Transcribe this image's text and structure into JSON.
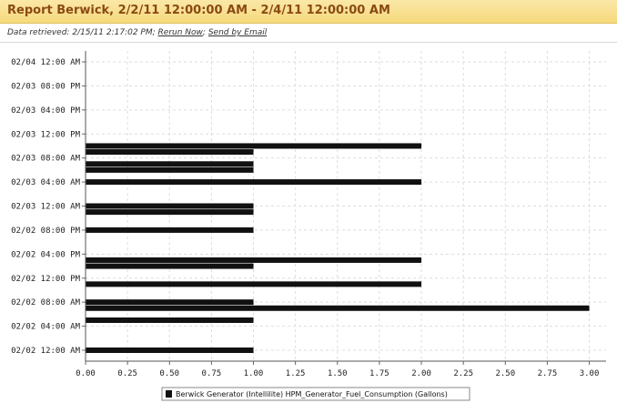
{
  "header": {
    "title": "Report Berwick, 2/2/11 12:00:00 AM - 2/4/11 12:00:00 AM"
  },
  "info": {
    "retrieved_label": "Data retrieved: 2/15/11 2:17:02 PM;",
    "rerun_label": "Rerun Now",
    "separator": ";",
    "email_label": "Send by Email"
  },
  "colors": {
    "bar": "#111111",
    "title": "#8a4a12",
    "grid": "#dddddd"
  },
  "chart_data": {
    "type": "bar",
    "orientation": "horizontal",
    "title": "",
    "xlabel": "",
    "ylabel": "",
    "xlim": [
      0,
      3.1
    ],
    "x_ticks": [
      0,
      0.25,
      0.5,
      0.75,
      1.0,
      1.25,
      1.5,
      1.75,
      2.0,
      2.25,
      2.5,
      2.75,
      3.0
    ],
    "x_tick_labels": [
      "0.00",
      "0.25",
      "0.50",
      "0.75",
      "1.00",
      "1.25",
      "1.50",
      "1.75",
      "2.00",
      "2.25",
      "2.50",
      "2.75",
      "3.00"
    ],
    "y_ticks": [
      "02/02 12:00 AM",
      "02/02 04:00 AM",
      "02/02 08:00 AM",
      "02/02 12:00 PM",
      "02/02 04:00 PM",
      "02/02 08:00 PM",
      "02/03 12:00 AM",
      "02/03 04:00 AM",
      "02/03 08:00 AM",
      "02/03 12:00 PM",
      "02/03 04:00 PM",
      "02/03 08:00 PM",
      "02/04 12:00 AM"
    ],
    "grid": true,
    "legend_position": "bottom",
    "series": [
      {
        "name": "Berwick Generator (Intellilite) HPM_Generator_Fuel_Consumption (Gallons)",
        "points": [
          {
            "time": "02/02 12:00 AM",
            "value": 1.0
          },
          {
            "time": "02/02 05:00 AM",
            "value": 1.0
          },
          {
            "time": "02/02 07:00 AM",
            "value": 3.0
          },
          {
            "time": "02/02 08:00 AM",
            "value": 1.0
          },
          {
            "time": "02/02 11:00 AM",
            "value": 2.0
          },
          {
            "time": "02/02 02:00 PM",
            "value": 1.0
          },
          {
            "time": "02/02 03:00 PM",
            "value": 2.0
          },
          {
            "time": "02/02 08:00 PM",
            "value": 1.0
          },
          {
            "time": "02/02 11:00 PM",
            "value": 1.0
          },
          {
            "time": "02/03 12:00 AM",
            "value": 1.0
          },
          {
            "time": "02/03 04:00 AM",
            "value": 2.0
          },
          {
            "time": "02/03 06:00 AM",
            "value": 1.0
          },
          {
            "time": "02/03 07:00 AM",
            "value": 1.0
          },
          {
            "time": "02/03 09:00 AM",
            "value": 1.0
          },
          {
            "time": "02/03 10:00 AM",
            "value": 2.0
          }
        ]
      }
    ]
  }
}
